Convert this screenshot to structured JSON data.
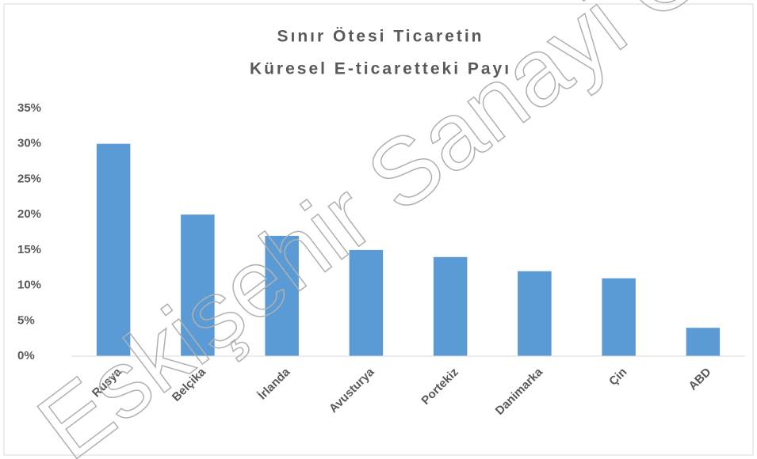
{
  "chart_data": {
    "type": "bar",
    "title": [
      "Sınır Ötesi Ticaretin",
      "Küresel E-ticaretteki Payı"
    ],
    "categories": [
      "Rusya",
      "Belçika",
      "İrlanda",
      "Avusturya",
      "Portekiz",
      "Danimarka",
      "Çin",
      "ABD"
    ],
    "values": [
      30,
      20,
      17,
      15,
      14,
      12,
      11,
      4
    ],
    "color": "#5b9bd5",
    "ylim": [
      0,
      35
    ],
    "yticks": [
      {
        "value": 0,
        "label": "0%"
      },
      {
        "value": 5,
        "label": "5%"
      },
      {
        "value": 10,
        "label": "10%"
      },
      {
        "value": 15,
        "label": "15%"
      },
      {
        "value": 20,
        "label": "20%"
      },
      {
        "value": 25,
        "label": "25%"
      },
      {
        "value": 30,
        "label": "30%"
      },
      {
        "value": 35,
        "label": "35%"
      }
    ],
    "grid": false,
    "watermark": "Eskişehir Sanayi O"
  }
}
